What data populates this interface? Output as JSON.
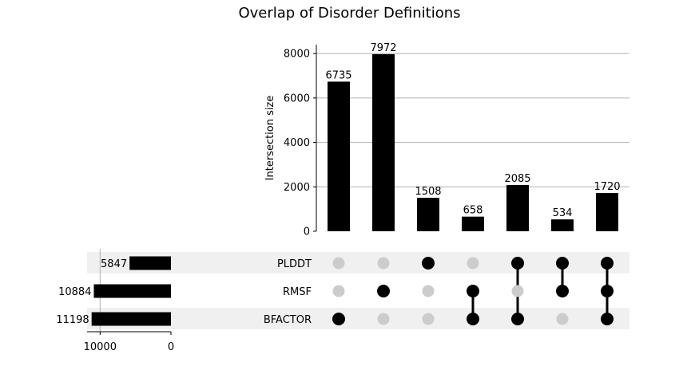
{
  "chart_data": {
    "type": "upset",
    "title": "Overlap of Disorder Definitions",
    "ylabel": "Intersection size",
    "ylim": [
      0,
      8400
    ],
    "yticks": [
      0,
      2000,
      4000,
      6000,
      8000
    ],
    "grid": true,
    "sets": [
      {
        "name": "PLDDT",
        "size": 5847
      },
      {
        "name": "RMSF",
        "size": 10884
      },
      {
        "name": "BFACTOR",
        "size": 11198
      }
    ],
    "set_size_ticks": [
      10000,
      0
    ],
    "set_size_xlim": [
      0,
      11500
    ],
    "intersections": [
      {
        "members": [
          "BFACTOR"
        ],
        "value": 6735
      },
      {
        "members": [
          "RMSF"
        ],
        "value": 7972
      },
      {
        "members": [
          "PLDDT"
        ],
        "value": 1508
      },
      {
        "members": [
          "RMSF",
          "BFACTOR"
        ],
        "value": 658
      },
      {
        "members": [
          "PLDDT",
          "BFACTOR"
        ],
        "value": 2085
      },
      {
        "members": [
          "PLDDT",
          "RMSF"
        ],
        "value": 534
      },
      {
        "members": [
          "PLDDT",
          "RMSF",
          "BFACTOR"
        ],
        "value": 1720
      }
    ],
    "colors": {
      "bar": "#000000",
      "dot_on": "#000000",
      "dot_off": "#cccccc",
      "stripe": "#f0f0f0",
      "grid": "#b0b0b0"
    }
  }
}
